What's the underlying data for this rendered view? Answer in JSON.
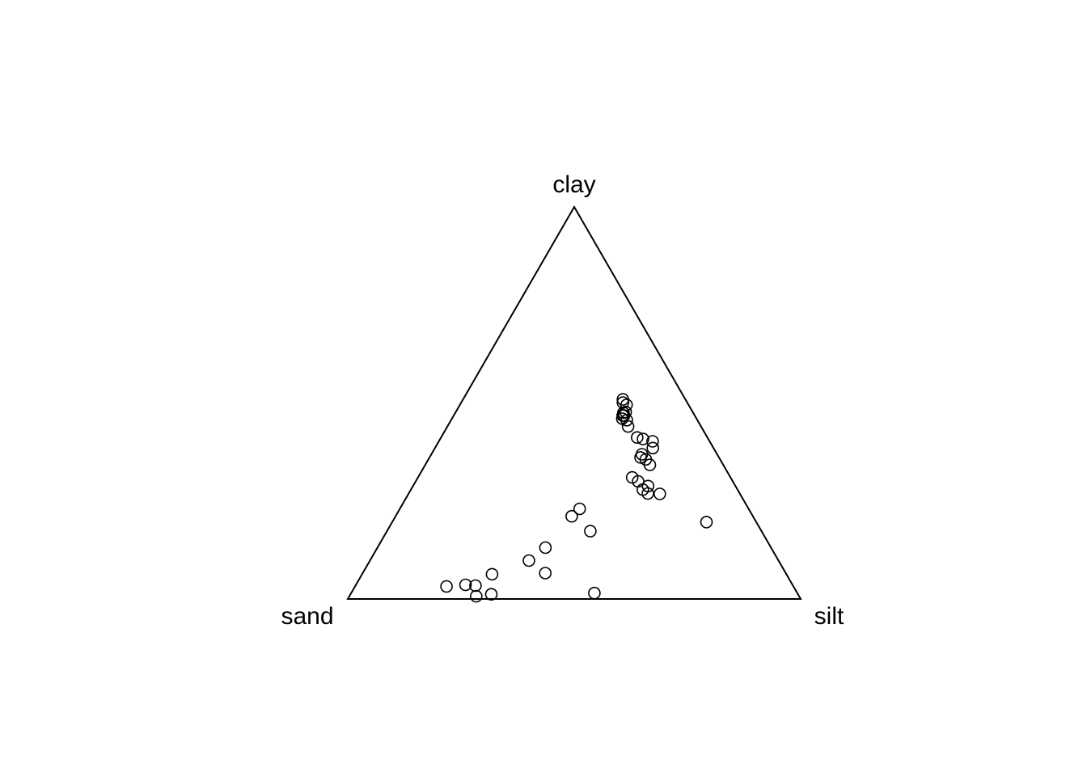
{
  "chart_data": {
    "type": "scatter",
    "subtype": "ternary",
    "title": "",
    "axes": [
      "clay",
      "sand",
      "silt"
    ],
    "vertex_labels": {
      "top": "clay",
      "bottom_left": "sand",
      "bottom_right": "silt"
    },
    "marker": "open-circle",
    "color": "#000000",
    "points": [
      {
        "clay": 0.477,
        "sand": 0.148,
        "silt": 0.375
      },
      {
        "clay": 0.468,
        "sand": 0.156,
        "silt": 0.376
      },
      {
        "clay": 0.501,
        "sand": 0.142,
        "silt": 0.357
      },
      {
        "clay": 0.509,
        "sand": 0.138,
        "silt": 0.353
      },
      {
        "clay": 0.495,
        "sand": 0.137,
        "silt": 0.368
      },
      {
        "clay": 0.46,
        "sand": 0.164,
        "silt": 0.376
      },
      {
        "clay": 0.468,
        "sand": 0.159,
        "silt": 0.373
      },
      {
        "clay": 0.456,
        "sand": 0.156,
        "silt": 0.388
      },
      {
        "clay": 0.475,
        "sand": 0.154,
        "silt": 0.371
      },
      {
        "clay": 0.44,
        "sand": 0.161,
        "silt": 0.399
      },
      {
        "clay": 0.408,
        "sand": 0.144,
        "silt": 0.448
      },
      {
        "clay": 0.412,
        "sand": 0.155,
        "silt": 0.433
      },
      {
        "clay": 0.402,
        "sand": 0.126,
        "silt": 0.472
      },
      {
        "clay": 0.385,
        "sand": 0.134,
        "silt": 0.481
      },
      {
        "clay": 0.361,
        "sand": 0.173,
        "silt": 0.466
      },
      {
        "clay": 0.356,
        "sand": 0.164,
        "silt": 0.48
      },
      {
        "clay": 0.369,
        "sand": 0.166,
        "silt": 0.465
      },
      {
        "clay": 0.342,
        "sand": 0.162,
        "silt": 0.496
      },
      {
        "clay": 0.31,
        "sand": 0.217,
        "silt": 0.473
      },
      {
        "clay": 0.3,
        "sand": 0.209,
        "silt": 0.491
      },
      {
        "clay": 0.279,
        "sand": 0.209,
        "silt": 0.512
      },
      {
        "clay": 0.288,
        "sand": 0.193,
        "silt": 0.519
      },
      {
        "clay": 0.269,
        "sand": 0.203,
        "silt": 0.528
      },
      {
        "clay": 0.268,
        "sand": 0.177,
        "silt": 0.555
      },
      {
        "clay": 0.211,
        "sand": 0.4,
        "silt": 0.389
      },
      {
        "clay": 0.173,
        "sand": 0.378,
        "silt": 0.449
      },
      {
        "clay": 0.23,
        "sand": 0.373,
        "silt": 0.397
      },
      {
        "clay": 0.196,
        "sand": 0.11,
        "silt": 0.694
      },
      {
        "clay": 0.131,
        "sand": 0.498,
        "silt": 0.371
      },
      {
        "clay": 0.098,
        "sand": 0.551,
        "silt": 0.351
      },
      {
        "clay": 0.066,
        "sand": 0.531,
        "silt": 0.403
      },
      {
        "clay": 0.063,
        "sand": 0.65,
        "silt": 0.287
      },
      {
        "clay": 0.034,
        "sand": 0.701,
        "silt": 0.265
      },
      {
        "clay": 0.032,
        "sand": 0.766,
        "silt": 0.202
      },
      {
        "clay": 0.036,
        "sand": 0.722,
        "silt": 0.242
      },
      {
        "clay": 0.007,
        "sand": 0.713,
        "silt": 0.28
      },
      {
        "clay": 0.012,
        "sand": 0.677,
        "silt": 0.311
      },
      {
        "clay": 0.015,
        "sand": 0.448,
        "silt": 0.537
      }
    ]
  }
}
